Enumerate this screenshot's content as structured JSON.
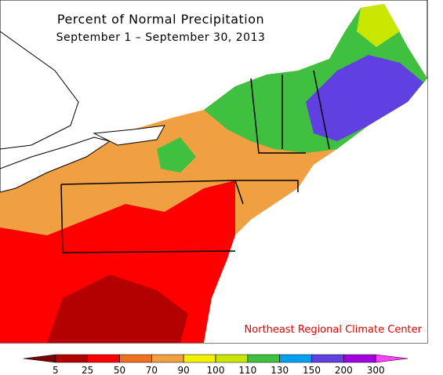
{
  "title": "Percent of Normal Precipitation",
  "subtitle": "September 1 – September 30, 2013",
  "credit": "Northeast Regional Climate Center",
  "legend": {
    "ticks": [
      5,
      25,
      50,
      70,
      90,
      100,
      110,
      130,
      150,
      200,
      300
    ],
    "colors": [
      "#7a0000",
      "#b40000",
      "#ff0000",
      "#f07020",
      "#f0a040",
      "#f0f000",
      "#c8e600",
      "#40c040",
      "#00a0f0",
      "#6040e0",
      "#a000e0",
      "#ff40ff"
    ]
  }
}
